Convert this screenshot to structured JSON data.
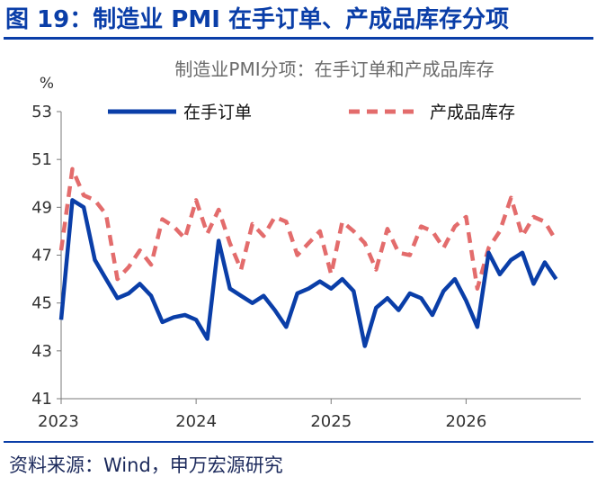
{
  "figure": {
    "title": "图 19：制造业 PMI 在手订单、产成品库存分项",
    "source": "资料来源：Wind，申万宏源研究"
  },
  "colors": {
    "accent": "#0a3ea8",
    "series_backlog": "#0a3ea8",
    "series_inventory": "#e36c6c"
  },
  "chart_data": {
    "type": "line",
    "title": "制造业PMI分项：在手订单和产成品库存",
    "ylabel": "%",
    "ylim": [
      41,
      53
    ],
    "yticks": [
      41,
      43,
      45,
      47,
      49,
      51,
      53
    ],
    "xlim": [
      2023.0,
      2026.85
    ],
    "xticks": [
      {
        "label": "2023",
        "value": 2023
      },
      {
        "label": "2024",
        "value": 2024
      },
      {
        "label": "2025",
        "value": 2025
      },
      {
        "label": "2026",
        "value": 2026
      }
    ],
    "grid": false,
    "legend": "top",
    "series": [
      {
        "name": "在手订单",
        "style": "solid",
        "x": [
          2023.0,
          2023.083,
          2023.167,
          2023.25,
          2023.333,
          2023.417,
          2023.5,
          2023.583,
          2023.667,
          2023.75,
          2023.833,
          2023.917,
          2024.0,
          2024.083,
          2024.167,
          2024.25,
          2024.333,
          2024.417,
          2024.5,
          2024.583,
          2024.667,
          2024.75,
          2024.833,
          2024.917,
          2025.0,
          2025.083,
          2025.167,
          2025.25,
          2025.333,
          2025.417,
          2025.5,
          2025.583,
          2025.667,
          2025.75,
          2025.833,
          2025.917,
          2026.0,
          2026.083,
          2026.167,
          2026.25,
          2026.333,
          2026.417,
          2026.5,
          2026.583,
          2026.667
        ],
        "values": [
          44.3,
          49.3,
          49.0,
          46.8,
          46.0,
          45.2,
          45.4,
          45.8,
          45.3,
          44.2,
          44.4,
          44.5,
          44.3,
          43.5,
          47.6,
          45.6,
          45.3,
          45.0,
          45.3,
          44.7,
          44.0,
          45.4,
          45.6,
          45.9,
          45.6,
          46.0,
          45.5,
          43.2,
          44.8,
          45.2,
          44.7,
          45.4,
          45.2,
          44.5,
          45.5,
          46.0,
          45.1,
          44.0,
          47.1,
          46.2,
          46.8,
          47.1,
          45.8,
          46.7,
          46.0
        ]
      },
      {
        "name": "产成品库存",
        "style": "dashed",
        "x": [
          2023.0,
          2023.083,
          2023.167,
          2023.25,
          2023.333,
          2023.417,
          2023.5,
          2023.583,
          2023.667,
          2023.75,
          2023.833,
          2023.917,
          2024.0,
          2024.083,
          2024.167,
          2024.25,
          2024.333,
          2024.417,
          2024.5,
          2024.583,
          2024.667,
          2024.75,
          2024.833,
          2024.917,
          2025.0,
          2025.083,
          2025.167,
          2025.25,
          2025.333,
          2025.417,
          2025.5,
          2025.583,
          2025.667,
          2025.75,
          2025.833,
          2025.917,
          2026.0,
          2026.083,
          2026.167,
          2026.25,
          2026.333,
          2026.417,
          2026.5,
          2026.583,
          2026.667
        ],
        "values": [
          47.2,
          50.6,
          49.5,
          49.3,
          48.7,
          46.0,
          46.5,
          47.2,
          46.6,
          48.5,
          48.2,
          47.7,
          49.3,
          47.9,
          48.9,
          47.5,
          46.4,
          48.3,
          47.8,
          48.6,
          48.4,
          47.0,
          47.5,
          48.0,
          46.2,
          48.4,
          48.0,
          47.5,
          46.4,
          48.1,
          47.1,
          47.0,
          48.2,
          48.0,
          47.3,
          48.2,
          48.6,
          45.6,
          47.3,
          48.0,
          49.4,
          47.8,
          48.6,
          48.4,
          47.6
        ]
      }
    ]
  }
}
